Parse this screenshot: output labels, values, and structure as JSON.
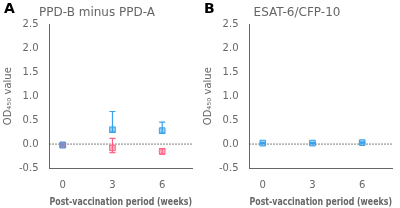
{
  "chart_data": [
    {
      "type": "scatter",
      "title": "PPD-B minus PPD-A",
      "xlabel": "Post-vaccination period (weeks)",
      "ylabel": "OD₄₅₀ value",
      "annotations": [
        "A"
      ],
      "x": [
        0,
        3,
        6
      ],
      "series": [
        {
          "values": [
            -0.02,
            0.3,
            0.28
          ],
          "yerr_lower": [
            0.02,
            0.05,
            0.05
          ],
          "yerr_upper": [
            0.02,
            0.38,
            0.18
          ]
        },
        {
          "values": [
            -0.02,
            -0.08,
            -0.15
          ],
          "yerr_lower": [
            0.02,
            0.1,
            0.06
          ],
          "yerr_upper": [
            0.02,
            0.2,
            0.05
          ]
        }
      ],
      "marker": "square",
      "hline": 0,
      "grid": false,
      "xlim": [
        -0.8,
        7.8
      ],
      "xticks": [
        0,
        3,
        6
      ],
      "ylim": [
        -0.5,
        2.5
      ],
      "yticks": [
        -0.5,
        {
          "value": 0.0,
          "label": "0.0"
        },
        0.5,
        {
          "value": 1.0,
          "label": "1.0"
        },
        1.5,
        {
          "value": 2.0,
          "label": "2.0"
        },
        2.5
      ]
    },
    {
      "type": "scatter",
      "title": "ESAT-6/CFP-10",
      "xlabel": "Post-vaccination period (weeks)",
      "ylabel": "OD₄₅₀ value",
      "annotations": [
        "B"
      ],
      "x": [
        0,
        3,
        6
      ],
      "series": [
        {
          "values": [
            0.02,
            0.02,
            0.03
          ],
          "yerr": [
            0.01,
            0.01,
            0.01
          ]
        }
      ],
      "marker": "square",
      "hline": 0,
      "grid": false,
      "xlim": [
        -0.8,
        7.8
      ],
      "xticks": [
        0,
        3,
        6
      ],
      "ylim": [
        -0.5,
        2.5
      ],
      "yticks": [
        -0.5,
        {
          "value": 0.0,
          "label": "0.0"
        },
        0.5,
        {
          "value": 1.0,
          "label": "1.0"
        },
        1.5,
        {
          "value": 2.0,
          "label": "2.0"
        },
        2.5
      ]
    }
  ]
}
